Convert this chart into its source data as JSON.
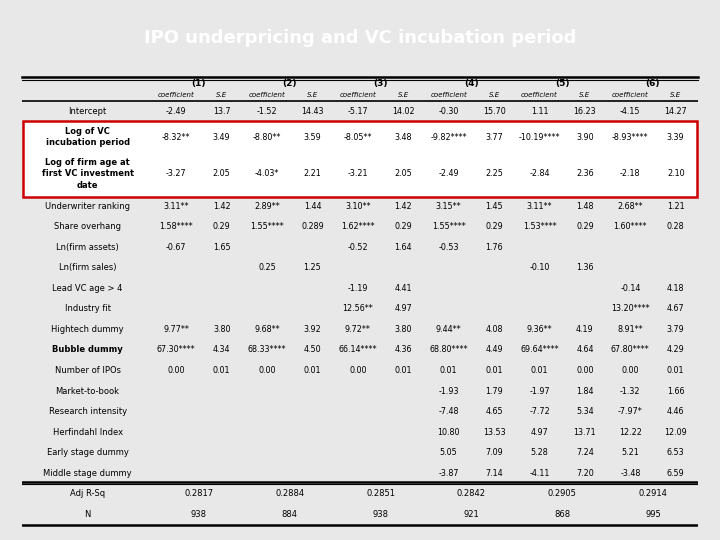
{
  "title": "IPO underpricing and VC incubation period",
  "title_bg": "#6aaae8",
  "title_color": "white",
  "columns": [
    "(1)",
    "(2)",
    "(3)",
    "(4)",
    "(5)",
    "(6)"
  ],
  "rows": [
    {
      "label": "Intercept",
      "bold": false,
      "highlight": false,
      "footer": false,
      "data": [
        "-2.49",
        "13.7",
        "-1.52",
        "14.43",
        "-5.17",
        "14.02",
        "-0.30",
        "15.70",
        "1.11",
        "16.23",
        "-4.15",
        "14.27"
      ]
    },
    {
      "label": "Log of VC\nincubation period",
      "bold": true,
      "highlight": true,
      "footer": false,
      "data": [
        "-8.32**",
        "3.49",
        "-8.80**",
        "3.59",
        "-8.05**",
        "3.48",
        "-9.82****",
        "3.77",
        "-10.19****",
        "3.90",
        "-8.93****",
        "3.39"
      ]
    },
    {
      "label": "Log of firm age at\nfirst VC investment\ndate",
      "bold": true,
      "highlight": true,
      "footer": false,
      "data": [
        "-3.27",
        "2.05",
        "-4.03*",
        "2.21",
        "-3.21",
        "2.05",
        "-2.49",
        "2.25",
        "-2.84",
        "2.36",
        "-2.18",
        "2.10"
      ]
    },
    {
      "label": "Underwriter ranking",
      "bold": false,
      "highlight": false,
      "footer": false,
      "data": [
        "3.11**",
        "1.42",
        "2.89**",
        "1.44",
        "3.10**",
        "1.42",
        "3.15**",
        "1.45",
        "3.11**",
        "1.48",
        "2.68**",
        "1.21"
      ]
    },
    {
      "label": "Share overhang",
      "bold": false,
      "highlight": false,
      "footer": false,
      "data": [
        "1.58****",
        "0.29",
        "1.55****",
        "0.289",
        "1.62****",
        "0.29",
        "1.55****",
        "0.29",
        "1.53****",
        "0.29",
        "1.60****",
        "0.28"
      ]
    },
    {
      "label": "Ln(firm assets)",
      "bold": false,
      "highlight": false,
      "footer": false,
      "data": [
        "-0.67",
        "1.65",
        "",
        "",
        "-0.52",
        "1.64",
        "-0.53",
        "1.76",
        "",
        "",
        "",
        ""
      ]
    },
    {
      "label": "Ln(firm sales)",
      "bold": false,
      "highlight": false,
      "footer": false,
      "data": [
        "",
        "",
        "0.25",
        "1.25",
        "",
        "",
        "",
        "",
        "-0.10",
        "1.36",
        "",
        ""
      ]
    },
    {
      "label": "Lead VC age > 4",
      "bold": false,
      "highlight": false,
      "footer": false,
      "data": [
        "",
        "",
        "",
        "",
        "-1.19",
        "4.41",
        "",
        "",
        "",
        "",
        "-0.14",
        "4.18"
      ]
    },
    {
      "label": "Industry fit",
      "bold": false,
      "highlight": false,
      "footer": false,
      "data": [
        "",
        "",
        "",
        "",
        "12.56**",
        "4.97",
        "",
        "",
        "",
        "",
        "13.20****",
        "4.67"
      ]
    },
    {
      "label": "Hightech dummy",
      "bold": false,
      "highlight": false,
      "footer": false,
      "data": [
        "9.77**",
        "3.80",
        "9.68**",
        "3.92",
        "9.72**",
        "3.80",
        "9.44**",
        "4.08",
        "9.36**",
        "4.19",
        "8.91**",
        "3.79"
      ]
    },
    {
      "label": "Bubble dummy",
      "bold": true,
      "highlight": false,
      "footer": false,
      "data": [
        "67.30****",
        "4.34",
        "68.33****",
        "4.50",
        "66.14****",
        "4.36",
        "68.80****",
        "4.49",
        "69.64****",
        "4.64",
        "67.80****",
        "4.29"
      ]
    },
    {
      "label": "Number of IPOs",
      "bold": false,
      "highlight": false,
      "footer": false,
      "data": [
        "0.00",
        "0.01",
        "0.00",
        "0.01",
        "0.00",
        "0.01",
        "0.01",
        "0.01",
        "0.01",
        "0.00",
        "0.00",
        "0.01"
      ]
    },
    {
      "label": "Market-to-book",
      "bold": false,
      "highlight": false,
      "footer": false,
      "data": [
        "",
        "",
        "",
        "",
        "",
        "",
        "-1.93",
        "1.79",
        "-1.97",
        "1.84",
        "-1.32",
        "1.66"
      ]
    },
    {
      "label": "Research intensity",
      "bold": false,
      "highlight": false,
      "footer": false,
      "data": [
        "",
        "",
        "",
        "",
        "",
        "",
        "-7.48",
        "4.65",
        "-7.72",
        "5.34",
        "-7.97*",
        "4.46"
      ]
    },
    {
      "label": "Herfindahl Index",
      "bold": false,
      "highlight": false,
      "footer": false,
      "data": [
        "",
        "",
        "",
        "",
        "",
        "",
        "10.80",
        "13.53",
        "4.97",
        "13.71",
        "12.22",
        "12.09"
      ]
    },
    {
      "label": "Early stage dummy",
      "bold": false,
      "highlight": false,
      "footer": false,
      "data": [
        "",
        "",
        "",
        "",
        "",
        "",
        "5.05",
        "7.09",
        "5.28",
        "7.24",
        "5.21",
        "6.53"
      ]
    },
    {
      "label": "Middle stage dummy",
      "bold": false,
      "highlight": false,
      "footer": false,
      "data": [
        "",
        "",
        "",
        "",
        "",
        "",
        "-3.87",
        "7.14",
        "-4.11",
        "7.20",
        "-3.48",
        "6.59"
      ]
    },
    {
      "label": "Adj R-Sq",
      "bold": false,
      "highlight": false,
      "footer": true,
      "data": [
        "0.2817",
        "",
        "0.2884",
        "",
        "0.2851",
        "",
        "0.2842",
        "",
        "0.2905",
        "",
        "0.2914",
        ""
      ]
    },
    {
      "label": "N",
      "bold": false,
      "highlight": false,
      "footer": true,
      "data": [
        "938",
        "",
        "884",
        "",
        "938",
        "",
        "921",
        "",
        "868",
        "",
        "995",
        ""
      ]
    }
  ],
  "highlight_border": "#cc0000",
  "bg_color": "#e8e8e8",
  "table_bg": "white"
}
